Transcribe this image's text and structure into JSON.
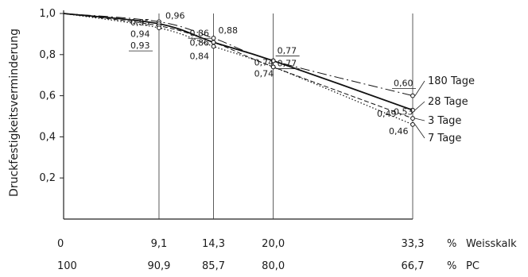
{
  "chart_data": {
    "type": "line",
    "ylabel": "Druckfestigkeitsverminderung",
    "ylim": [
      0,
      1.0
    ],
    "yticks": [
      "0,2",
      "0,4",
      "0,6",
      "0,8",
      "1,0"
    ],
    "xlim": [
      0,
      33.3
    ],
    "x": [
      0,
      9.1,
      14.3,
      20.0,
      33.3
    ],
    "x_axis_rows": [
      {
        "values": [
          "0",
          "9,1",
          "14,3",
          "20,0",
          "33,3"
        ],
        "unit": "%",
        "name": "Weisskalk"
      },
      {
        "values": [
          "100",
          "90,9",
          "85,7",
          "80,0",
          "66,7"
        ],
        "unit": "%",
        "name": "PC"
      }
    ],
    "series": [
      {
        "name": "180 Tage",
        "style": "dash-dot",
        "values": [
          1.0,
          0.96,
          0.88,
          0.77,
          0.6
        ],
        "labels": [
          "",
          "0,96",
          "0,88",
          "0,77",
          "0,60"
        ]
      },
      {
        "name": "28 Tage",
        "style": "solid",
        "values": [
          1.0,
          0.95,
          0.86,
          0.77,
          0.53
        ],
        "labels": [
          "",
          "0,95",
          "0,86",
          "0,77",
          "0,53"
        ]
      },
      {
        "name": "3 Tage",
        "style": "dashed",
        "values": [
          1.0,
          0.94,
          0.86,
          0.74,
          0.49
        ],
        "labels": [
          "",
          "0,94",
          "0,86",
          "0,74",
          "0,49"
        ]
      },
      {
        "name": "7 Tage",
        "style": "dotted",
        "values": [
          1.0,
          0.93,
          0.84,
          0.74,
          0.46
        ],
        "labels": [
          "",
          "0,93",
          "0,84",
          "0,74",
          "0,46"
        ]
      }
    ],
    "grid": "vertical at data x values",
    "legend": "right"
  }
}
